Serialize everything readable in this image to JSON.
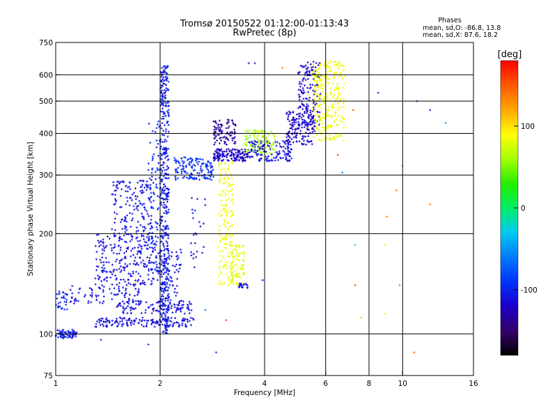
{
  "chart_data": {
    "type": "scatter",
    "title": "Tromsø 20150522 01:12:00-01:13:43",
    "subtitle": "RwPretec (8p)",
    "xlabel": "Frequency [MHz]",
    "ylabel": "Stationary phase Virtual Height [km]",
    "x_scale": "log",
    "y_scale": "log",
    "xlim": [
      1,
      16
    ],
    "ylim": [
      75,
      750
    ],
    "x_ticks": [
      1,
      2,
      4,
      6,
      8,
      10,
      16
    ],
    "x_tick_labels": [
      "1",
      "2",
      "4",
      "6",
      "8",
      "10",
      "16"
    ],
    "x_grid": [
      2,
      4,
      6,
      8,
      10
    ],
    "y_ticks": [
      75,
      100,
      200,
      300,
      400,
      500,
      600,
      750
    ],
    "y_tick_labels": [
      "75",
      "100",
      "200",
      "300",
      "400",
      "500",
      "600",
      "750"
    ],
    "y_grid": [
      100,
      200,
      300,
      400,
      500,
      600
    ],
    "grid": true,
    "stats": {
      "header": "Phases",
      "line_o": "mean, sd,O: -86.8, 13.8",
      "line_x": "mean, sd,X:  87.6, 18.2"
    },
    "colorbar": {
      "label": "[deg]",
      "min": -180,
      "max": 180,
      "ticks": [
        100,
        0,
        -100
      ],
      "tick_labels": [
        "100",
        "0",
        "-100"
      ]
    },
    "clusters": [
      {
        "f": [
          1.0,
          1.15
        ],
        "h": [
          97,
          103
        ],
        "phase": -105,
        "n": 70
      },
      {
        "f": [
          1.0,
          1.08
        ],
        "h": [
          118,
          135
        ],
        "phase": -100,
        "n": 30
      },
      {
        "f": [
          1.1,
          1.75
        ],
        "h": [
          123,
          140
        ],
        "phase": -110,
        "n": 80
      },
      {
        "f": [
          1.3,
          2.5
        ],
        "h": [
          105,
          112
        ],
        "phase": -112,
        "n": 150
      },
      {
        "f": [
          1.5,
          2.5
        ],
        "h": [
          115,
          126
        ],
        "phase": -110,
        "n": 110
      },
      {
        "f": [
          1.3,
          2.0
        ],
        "h": [
          140,
          200
        ],
        "phase": -110,
        "n": 260
      },
      {
        "f": [
          1.45,
          1.9
        ],
        "h": [
          200,
          290
        ],
        "phase": -108,
        "n": 150
      },
      {
        "f": [
          2.0,
          2.12
        ],
        "h": [
          100,
          640
        ],
        "phase": -105,
        "n": 450
      },
      {
        "f": [
          1.85,
          2.0
        ],
        "h": [
          150,
          460
        ],
        "phase": -100,
        "n": 90
      },
      {
        "f": [
          2.1,
          2.3
        ],
        "h": [
          120,
          180
        ],
        "phase": -108,
        "n": 50
      },
      {
        "f": [
          2.2,
          2.85
        ],
        "h": [
          290,
          340
        ],
        "phase": -95,
        "n": 140
      },
      {
        "f": [
          2.45,
          2.7
        ],
        "h": [
          150,
          260
        ],
        "phase": -110,
        "n": 25
      },
      {
        "f": [
          2.85,
          3.6
        ],
        "h": [
          330,
          360
        ],
        "phase": -120,
        "n": 140
      },
      {
        "f": [
          2.85,
          3.3
        ],
        "h": [
          370,
          440
        ],
        "phase": -135,
        "n": 90
      },
      {
        "f": [
          3.5,
          4.3
        ],
        "h": [
          345,
          410
        ],
        "phase": 60,
        "n": 110
      },
      {
        "f": [
          3.6,
          4.8
        ],
        "h": [
          330,
          380
        ],
        "phase": -110,
        "n": 130
      },
      {
        "f": [
          4.6,
          5.6
        ],
        "h": [
          370,
          470
        ],
        "phase": -120,
        "n": 130
      },
      {
        "f": [
          5.0,
          5.8
        ],
        "h": [
          420,
          660
        ],
        "phase": -115,
        "n": 160
      },
      {
        "f": [
          5.5,
          6.8
        ],
        "h": [
          380,
          660
        ],
        "phase": 85,
        "n": 260
      },
      {
        "f": [
          2.95,
          3.25
        ],
        "h": [
          140,
          330
        ],
        "phase": 85,
        "n": 170
      },
      {
        "f": [
          3.2,
          3.5
        ],
        "h": [
          140,
          185
        ],
        "phase": 80,
        "n": 80
      },
      {
        "f": [
          3.35,
          3.6
        ],
        "h": [
          137,
          142
        ],
        "phase": -110,
        "n": 20
      }
    ],
    "points": [
      {
        "f": 3.75,
        "h": 650,
        "phase": -110
      },
      {
        "f": 3.6,
        "h": 650,
        "phase": -105
      },
      {
        "f": 4.5,
        "h": 630,
        "phase": 130
      },
      {
        "f": 6.5,
        "h": 345,
        "phase": 150
      },
      {
        "f": 6.7,
        "h": 305,
        "phase": -60
      },
      {
        "f": 7.2,
        "h": 470,
        "phase": 150
      },
      {
        "f": 8.5,
        "h": 530,
        "phase": -110
      },
      {
        "f": 10.0,
        "h": 320,
        "phase": 140
      },
      {
        "f": 9.6,
        "h": 270,
        "phase": 140
      },
      {
        "f": 9.0,
        "h": 225,
        "phase": 140
      },
      {
        "f": 8.9,
        "h": 185,
        "phase": 100
      },
      {
        "f": 7.3,
        "h": 185,
        "phase": 20
      },
      {
        "f": 9.8,
        "h": 140,
        "phase": 150
      },
      {
        "f": 7.3,
        "h": 140,
        "phase": 150
      },
      {
        "f": 7.6,
        "h": 112,
        "phase": 115
      },
      {
        "f": 8.9,
        "h": 115,
        "phase": 100
      },
      {
        "f": 12.0,
        "h": 245,
        "phase": 150
      },
      {
        "f": 11.0,
        "h": 500,
        "phase": -110
      },
      {
        "f": 12.0,
        "h": 470,
        "phase": -100
      },
      {
        "f": 13.3,
        "h": 430,
        "phase": -40
      },
      {
        "f": 10.8,
        "h": 88,
        "phase": 150
      },
      {
        "f": 3.1,
        "h": 110,
        "phase": 150
      },
      {
        "f": 2.9,
        "h": 88,
        "phase": -100
      },
      {
        "f": 3.95,
        "h": 145,
        "phase": -100
      },
      {
        "f": 2.7,
        "h": 118,
        "phase": -60
      },
      {
        "f": 1.85,
        "h": 93,
        "phase": -100
      },
      {
        "f": 1.35,
        "h": 96,
        "phase": -100
      }
    ]
  }
}
